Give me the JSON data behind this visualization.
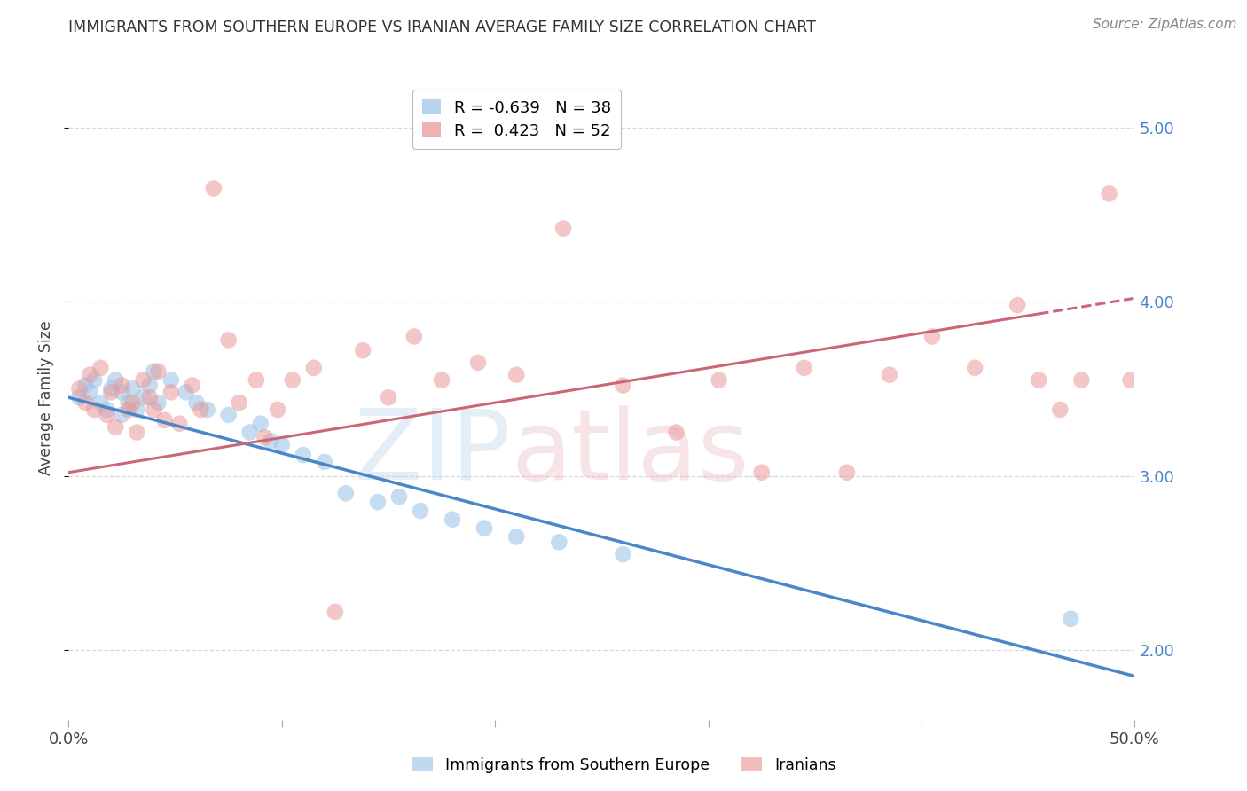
{
  "title": "IMMIGRANTS FROM SOUTHERN EUROPE VS IRANIAN AVERAGE FAMILY SIZE CORRELATION CHART",
  "source": "Source: ZipAtlas.com",
  "ylabel": "Average Family Size",
  "xlim": [
    0.0,
    0.5
  ],
  "ylim": [
    1.6,
    5.3
  ],
  "yticks": [
    2.0,
    3.0,
    4.0,
    5.0
  ],
  "xticks": [
    0.0,
    0.1,
    0.2,
    0.3,
    0.4,
    0.5
  ],
  "xticklabels": [
    "0.0%",
    "",
    "",
    "",
    "",
    "50.0%"
  ],
  "bg_color": "#ffffff",
  "grid_color": "#d8d8d8",
  "blue_color": "#9fc5e8",
  "pink_color": "#ea9999",
  "blue_line_color": "#4a86c8",
  "pink_line_color": "#cc6677",
  "ytick_color": "#4a86c8",
  "R_blue": -0.639,
  "N_blue": 38,
  "R_pink": 0.423,
  "N_pink": 52,
  "blue_x": [
    0.005,
    0.008,
    0.01,
    0.012,
    0.015,
    0.018,
    0.02,
    0.022,
    0.025,
    0.025,
    0.028,
    0.03,
    0.032,
    0.035,
    0.038,
    0.04,
    0.042,
    0.048,
    0.055,
    0.06,
    0.065,
    0.075,
    0.085,
    0.09,
    0.095,
    0.1,
    0.11,
    0.12,
    0.13,
    0.145,
    0.155,
    0.165,
    0.18,
    0.195,
    0.21,
    0.23,
    0.26,
    0.47
  ],
  "blue_y": [
    3.45,
    3.52,
    3.48,
    3.55,
    3.42,
    3.38,
    3.5,
    3.55,
    3.48,
    3.35,
    3.42,
    3.5,
    3.38,
    3.45,
    3.52,
    3.6,
    3.42,
    3.55,
    3.48,
    3.42,
    3.38,
    3.35,
    3.25,
    3.3,
    3.2,
    3.18,
    3.12,
    3.08,
    2.9,
    2.85,
    2.88,
    2.8,
    2.75,
    2.7,
    2.65,
    2.62,
    2.55,
    2.18
  ],
  "pink_x": [
    0.005,
    0.008,
    0.01,
    0.012,
    0.015,
    0.018,
    0.02,
    0.022,
    0.025,
    0.028,
    0.03,
    0.032,
    0.035,
    0.038,
    0.04,
    0.042,
    0.045,
    0.048,
    0.052,
    0.058,
    0.062,
    0.068,
    0.075,
    0.08,
    0.088,
    0.092,
    0.098,
    0.105,
    0.115,
    0.125,
    0.138,
    0.15,
    0.162,
    0.175,
    0.192,
    0.21,
    0.232,
    0.26,
    0.285,
    0.305,
    0.325,
    0.345,
    0.365,
    0.385,
    0.405,
    0.425,
    0.445,
    0.455,
    0.465,
    0.475,
    0.488,
    0.498
  ],
  "pink_y": [
    3.5,
    3.42,
    3.58,
    3.38,
    3.62,
    3.35,
    3.48,
    3.28,
    3.52,
    3.38,
    3.42,
    3.25,
    3.55,
    3.45,
    3.38,
    3.6,
    3.32,
    3.48,
    3.3,
    3.52,
    3.38,
    4.65,
    3.78,
    3.42,
    3.55,
    3.22,
    3.38,
    3.55,
    3.62,
    2.22,
    3.72,
    3.45,
    3.8,
    3.55,
    3.65,
    3.58,
    4.42,
    3.52,
    3.25,
    3.55,
    3.02,
    3.62,
    3.02,
    3.58,
    3.8,
    3.62,
    3.98,
    3.55,
    3.38,
    3.55,
    4.62,
    3.55
  ]
}
